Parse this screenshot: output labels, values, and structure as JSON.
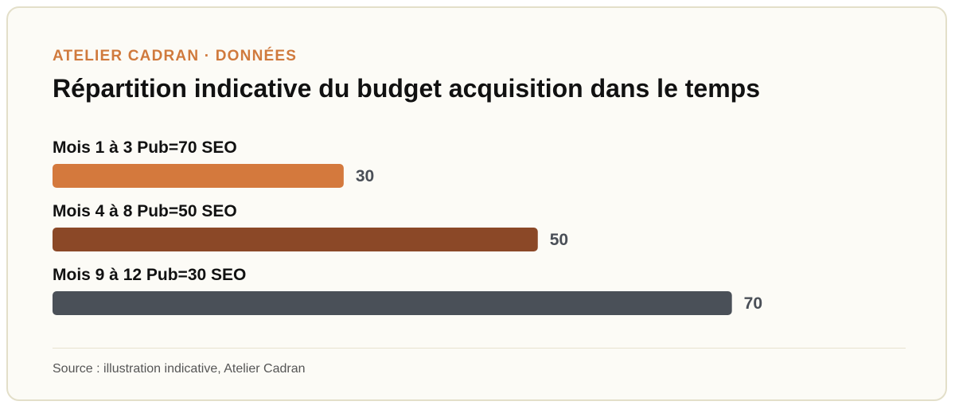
{
  "header": {
    "eyebrow": "ATELIER CADRAN · DONNÉES",
    "title": "Répartition indicative du budget acquisition dans le temps"
  },
  "footer": {
    "source": "Source : illustration indicative, Atelier Cadran"
  },
  "chart_data": {
    "type": "bar",
    "orientation": "horizontal",
    "title": "Répartition indicative du budget acquisition dans le temps",
    "categories": [
      "Mois 1 à 3 Pub=70 SEO",
      "Mois 4 à 8 Pub=50 SEO",
      "Mois 9 à 12 Pub=30 SEO"
    ],
    "values": [
      30,
      50,
      70
    ],
    "colors": [
      "#d4793d",
      "#8b4827",
      "#4a5058"
    ],
    "xlim": [
      0,
      82
    ],
    "grid": false,
    "legend": "none"
  }
}
